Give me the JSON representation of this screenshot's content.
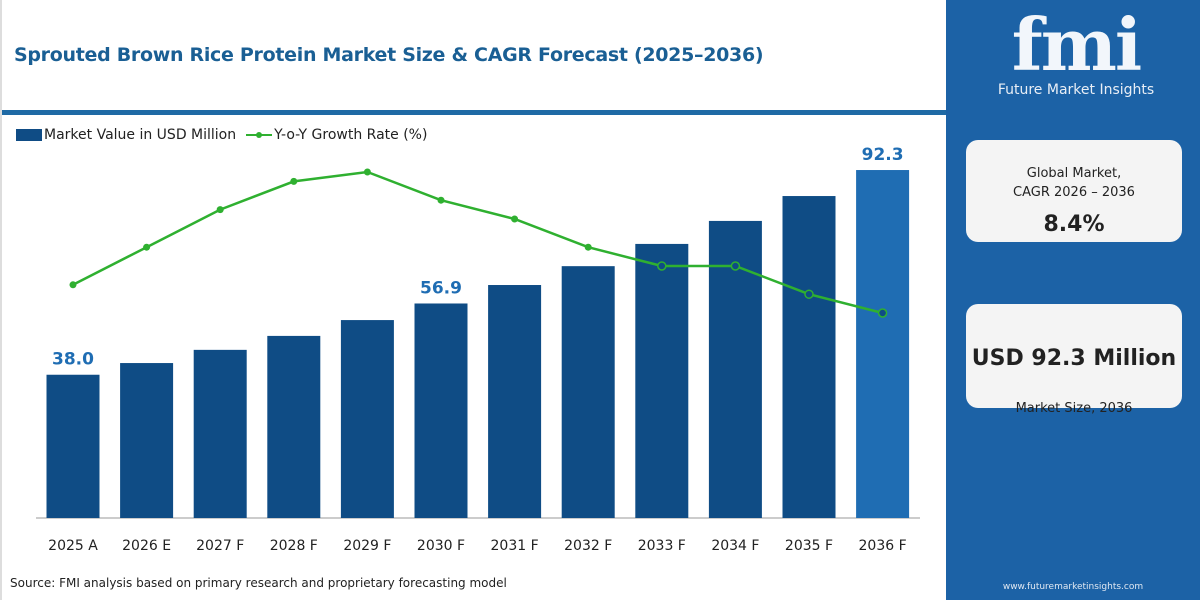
{
  "title": "Sprouted Brown Rice Protein Market Size & CAGR Forecast (2025–2036)",
  "legend": {
    "bar_label": "Market Value in USD Million",
    "line_label": "Y-o-Y Growth Rate (%)"
  },
  "source": "Source: FMI analysis based on primary research and proprietary forecasting model",
  "brand": {
    "logo_text": "fmi",
    "name": "Future Market Insights",
    "website": "www.futuremarketinsights.com"
  },
  "cards": {
    "cagr_label_1": "Global Market,",
    "cagr_label_2": "CAGR 2026 – 2036",
    "cagr_value": "8.4%",
    "size_value": "USD 92.3 Million",
    "size_label": "Market Size, 2036"
  },
  "colors": {
    "bar": "#0f4c85",
    "bar_highlight": "#1f6db3",
    "line": "#2fb030",
    "panel": "#1c62a6",
    "title": "#1a5f94"
  },
  "chart_data": {
    "type": "bar+line",
    "categories": [
      "2025 A",
      "2026 E",
      "2027 F",
      "2028 F",
      "2029 F",
      "2030 F",
      "2031 F",
      "2032 F",
      "2033 F",
      "2034 F",
      "2035 F",
      "2036 F"
    ],
    "series": [
      {
        "name": "Market Value in USD Million",
        "type": "bar",
        "values": [
          38.0,
          41.1,
          44.6,
          48.3,
          52.5,
          56.9,
          61.8,
          66.8,
          72.7,
          78.8,
          85.4,
          92.3
        ]
      },
      {
        "name": "Y-o-Y Growth Rate (%)",
        "type": "line",
        "values": [
          7.6,
          8.0,
          8.4,
          8.7,
          8.8,
          8.5,
          8.3,
          8.0,
          7.8,
          7.8,
          7.5,
          7.3
        ]
      }
    ],
    "data_labels": {
      "0": "38.0",
      "5": "56.9",
      "11": "92.3"
    },
    "ylim": [
      0,
      100
    ],
    "grid": false,
    "legend_position": "top-left"
  }
}
